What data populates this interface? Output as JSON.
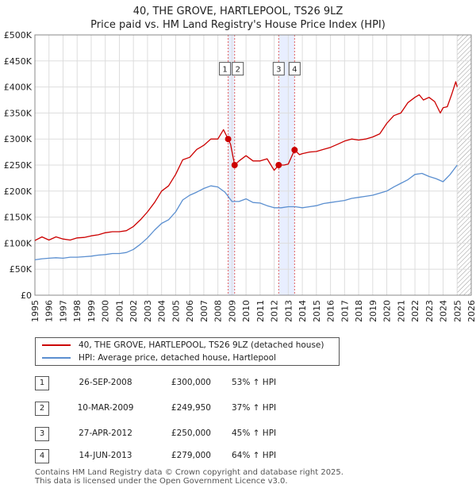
{
  "title_line1": "40, THE GROVE, HARTLEPOOL, TS26 9LZ",
  "title_line2": "Price paid vs. HM Land Registry's House Price Index (HPI)",
  "legend": {
    "property": "40, THE GROVE, HARTLEPOOL, TS26 9LZ (detached house)",
    "hpi": "HPI: Average price, detached house, Hartlepool"
  },
  "colors": {
    "property": "#cc0000",
    "hpi": "#5b8fd0",
    "grid": "#dddddd",
    "shade": "#e8eeff",
    "vline": "#e06060"
  },
  "sales": [
    {
      "num": "1",
      "date": "26-SEP-2008",
      "price": "£300,000",
      "hpi": "53% ↑ HPI"
    },
    {
      "num": "2",
      "date": "10-MAR-2009",
      "price": "£249,950",
      "hpi": "37% ↑ HPI"
    },
    {
      "num": "3",
      "date": "27-APR-2012",
      "price": "£250,000",
      "hpi": "45% ↑ HPI"
    },
    {
      "num": "4",
      "date": "14-JUN-2013",
      "price": "£279,000",
      "hpi": "64% ↑ HPI"
    }
  ],
  "footer": {
    "line1": "Contains HM Land Registry data © Crown copyright and database right 2025.",
    "line2": "This data is licensed under the Open Government Licence v3.0."
  },
  "chart_data": {
    "type": "line",
    "title": "40, THE GROVE, HARTLEPOOL, TS26 9LZ",
    "subtitle": "Price paid vs. HM Land Registry's House Price Index (HPI)",
    "xlim": [
      1995,
      2026
    ],
    "ylim": [
      0,
      500000
    ],
    "y_ticks": [
      0,
      50000,
      100000,
      150000,
      200000,
      250000,
      300000,
      350000,
      400000,
      450000,
      500000
    ],
    "y_tick_labels": [
      "£0",
      "£50K",
      "£100K",
      "£150K",
      "£200K",
      "£250K",
      "£300K",
      "£350K",
      "£400K",
      "£450K",
      "£500K"
    ],
    "x_ticks": [
      1995,
      1996,
      1997,
      1998,
      1999,
      2000,
      2001,
      2002,
      2003,
      2004,
      2005,
      2006,
      2007,
      2008,
      2009,
      2010,
      2011,
      2012,
      2013,
      2014,
      2015,
      2016,
      2017,
      2018,
      2019,
      2020,
      2021,
      2022,
      2023,
      2024,
      2025,
      2026
    ],
    "x_tick_labels": [
      "1995",
      "1996",
      "1997",
      "1998",
      "1999",
      "2000",
      "2001",
      "2002",
      "2003",
      "2004",
      "2005",
      "2006",
      "2007",
      "2008",
      "2009",
      "2010",
      "2011",
      "2012",
      "2013",
      "2014",
      "2015",
      "2016",
      "2017",
      "2018",
      "2019",
      "2020",
      "2021",
      "2022",
      "2023",
      "2024",
      "2025",
      "2026"
    ],
    "grid": true,
    "legend_position": "below",
    "shaded_periods": [
      [
        2008.73,
        2009.19
      ],
      [
        2012.32,
        2013.45
      ]
    ],
    "hatched_region": [
      2025.0,
      2026.0
    ],
    "sale_markers": [
      {
        "label": "1",
        "x": 2008.73,
        "y": 300000
      },
      {
        "label": "2",
        "x": 2009.19,
        "y": 249950
      },
      {
        "label": "3",
        "x": 2012.32,
        "y": 250000
      },
      {
        "label": "4",
        "x": 2013.45,
        "y": 279000
      }
    ],
    "marker_labels_y": 435000,
    "series": [
      {
        "name": "40, THE GROVE, HARTLEPOOL, TS26 9LZ (detached house)",
        "x": [
          1995.0,
          1995.5,
          1996.0,
          1996.5,
          1997.0,
          1997.5,
          1998.0,
          1998.5,
          1999.0,
          1999.5,
          2000.0,
          2000.5,
          2001.0,
          2001.5,
          2002.0,
          2002.5,
          2003.0,
          2003.5,
          2004.0,
          2004.5,
          2005.0,
          2005.5,
          2006.0,
          2006.5,
          2007.0,
          2007.5,
          2008.0,
          2008.4,
          2008.73,
          2008.9,
          2009.19,
          2009.5,
          2010.0,
          2010.5,
          2011.0,
          2011.5,
          2012.0,
          2012.32,
          2012.7,
          2013.0,
          2013.45,
          2013.8,
          2014.0,
          2014.5,
          2015.0,
          2015.5,
          2016.0,
          2016.5,
          2017.0,
          2017.5,
          2018.0,
          2018.5,
          2019.0,
          2019.5,
          2020.0,
          2020.5,
          2021.0,
          2021.5,
          2022.0,
          2022.3,
          2022.6,
          2023.0,
          2023.4,
          2023.8,
          2024.0,
          2024.3,
          2024.6,
          2024.9,
          2025.0
        ],
        "values": [
          105000,
          112000,
          106000,
          112000,
          108000,
          106000,
          110000,
          111000,
          114000,
          116000,
          120000,
          122000,
          122000,
          124000,
          132000,
          145000,
          160000,
          178000,
          200000,
          210000,
          232000,
          260000,
          265000,
          280000,
          288000,
          300000,
          300000,
          318000,
          300000,
          290000,
          249950,
          258000,
          268000,
          258000,
          258000,
          262000,
          240000,
          250000,
          250000,
          252000,
          279000,
          270000,
          272000,
          275000,
          276000,
          280000,
          284000,
          290000,
          296000,
          300000,
          298000,
          300000,
          304000,
          310000,
          330000,
          345000,
          350000,
          370000,
          380000,
          385000,
          375000,
          380000,
          372000,
          350000,
          360000,
          362000,
          385000,
          410000,
          400000
        ]
      },
      {
        "name": "HPI: Average price, detached house, Hartlepool",
        "x": [
          1995.0,
          1995.5,
          1996.0,
          1996.5,
          1997.0,
          1997.5,
          1998.0,
          1998.5,
          1999.0,
          1999.5,
          2000.0,
          2000.5,
          2001.0,
          2001.5,
          2002.0,
          2002.5,
          2003.0,
          2003.5,
          2004.0,
          2004.5,
          2005.0,
          2005.5,
          2006.0,
          2006.5,
          2007.0,
          2007.5,
          2008.0,
          2008.5,
          2009.0,
          2009.5,
          2010.0,
          2010.5,
          2011.0,
          2011.5,
          2012.0,
          2012.5,
          2013.0,
          2013.5,
          2014.0,
          2014.5,
          2015.0,
          2015.5,
          2016.0,
          2016.5,
          2017.0,
          2017.5,
          2018.0,
          2018.5,
          2019.0,
          2019.5,
          2020.0,
          2020.5,
          2021.0,
          2021.5,
          2022.0,
          2022.5,
          2023.0,
          2023.5,
          2024.0,
          2024.5,
          2025.0
        ],
        "values": [
          68000,
          70000,
          71000,
          72000,
          71000,
          73000,
          73000,
          74000,
          75000,
          77000,
          78000,
          80000,
          80000,
          82000,
          88000,
          98000,
          110000,
          125000,
          138000,
          145000,
          160000,
          183000,
          192000,
          198000,
          205000,
          210000,
          208000,
          198000,
          180000,
          180000,
          185000,
          178000,
          177000,
          172000,
          168000,
          168000,
          170000,
          170000,
          168000,
          170000,
          172000,
          176000,
          178000,
          180000,
          182000,
          186000,
          188000,
          190000,
          192000,
          196000,
          200000,
          208000,
          215000,
          222000,
          232000,
          234000,
          228000,
          224000,
          218000,
          232000,
          250000
        ]
      }
    ]
  }
}
